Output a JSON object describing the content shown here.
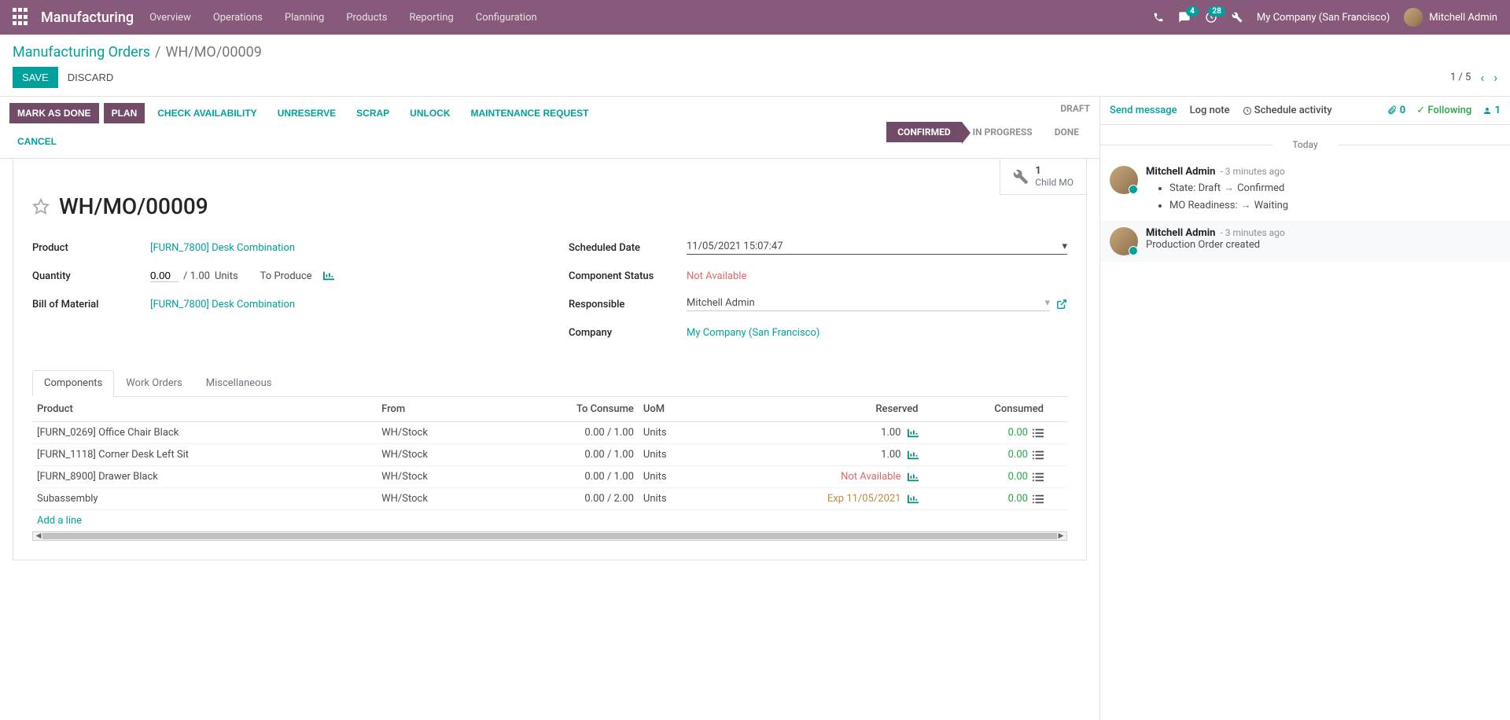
{
  "nav": {
    "brand": "Manufacturing",
    "menu": [
      "Overview",
      "Operations",
      "Planning",
      "Products",
      "Reporting",
      "Configuration"
    ],
    "msg_badge": "4",
    "clock_badge": "28",
    "company": "My Company (San Francisco)",
    "user": "Mitchell Admin"
  },
  "breadcrumb": {
    "lvl1": "Manufacturing Orders",
    "lvl2": "WH/MO/00009"
  },
  "cp": {
    "save": "SAVE",
    "discard": "DISCARD",
    "pager": "1 / 5"
  },
  "statusbar": {
    "mark_done": "MARK AS DONE",
    "plan": "PLAN",
    "check": "CHECK AVAILABILITY",
    "unreserve": "UNRESERVE",
    "scrap": "SCRAP",
    "unlock": "UNLOCK",
    "maint": "MAINTENANCE REQUEST",
    "cancel": "CANCEL",
    "draft": "DRAFT",
    "stages": {
      "confirmed": "CONFIRMED",
      "in_progress": "IN PROGRESS",
      "done": "DONE"
    }
  },
  "button_box": {
    "count": "1",
    "label": "Child MO"
  },
  "title": "WH/MO/00009",
  "fields": {
    "product_lbl": "Product",
    "product_val": "[FURN_7800] Desk Combination",
    "qty_lbl": "Quantity",
    "qty_val": "0.00",
    "qty_div": "/ 1.00",
    "qty_uom": "Units",
    "qty_tp": "To Produce",
    "bom_lbl": "Bill of Material",
    "bom_val": "[FURN_7800] Desk Combination",
    "sched_lbl": "Scheduled Date",
    "sched_val": "11/05/2021 15:07:47",
    "compstat_lbl": "Component Status",
    "compstat_val": "Not Available",
    "resp_lbl": "Responsible",
    "resp_val": "Mitchell Admin",
    "company_lbl": "Company",
    "company_val": "My Company (San Francisco)"
  },
  "tabs": {
    "components": "Components",
    "work_orders": "Work Orders",
    "misc": "Miscellaneous"
  },
  "table": {
    "h_product": "Product",
    "h_from": "From",
    "h_consume": "To Consume",
    "h_uom": "UoM",
    "h_reserved": "Reserved",
    "h_consumed": "Consumed",
    "rows": [
      {
        "p": "[FURN_0269] Office Chair Black",
        "f": "WH/Stock",
        "c": "0.00 / 1.00",
        "u": "Units",
        "r": "1.00",
        "rc": "",
        "cn": "0.00"
      },
      {
        "p": "[FURN_1118] Corner Desk Left Sit",
        "f": "WH/Stock",
        "c": "0.00 / 1.00",
        "u": "Units",
        "r": "1.00",
        "rc": "",
        "cn": "0.00"
      },
      {
        "p": "[FURN_8900] Drawer Black",
        "f": "WH/Stock",
        "c": "0.00 / 1.00",
        "u": "Units",
        "r": "Not Available",
        "rc": "danger",
        "cn": "0.00"
      },
      {
        "p": "Subassembly",
        "f": "WH/Stock",
        "c": "0.00 / 2.00",
        "u": "Units",
        "r": "Exp 11/05/2021",
        "rc": "warn",
        "cn": "0.00"
      }
    ],
    "add_line": "Add a line"
  },
  "chatter": {
    "send": "Send message",
    "log": "Log note",
    "schedule": "Schedule activity",
    "attach": "0",
    "following": "Following",
    "followers": "1",
    "today": "Today",
    "msg1": {
      "author": "Mitchell Admin",
      "time": "- 3 minutes ago",
      "l1a": "State: Draft",
      "l1b": "Confirmed",
      "l2a": "MO Readiness:",
      "l2b": "Waiting"
    },
    "msg2": {
      "author": "Mitchell Admin",
      "time": "- 3 minutes ago",
      "body": "Production Order created"
    }
  }
}
